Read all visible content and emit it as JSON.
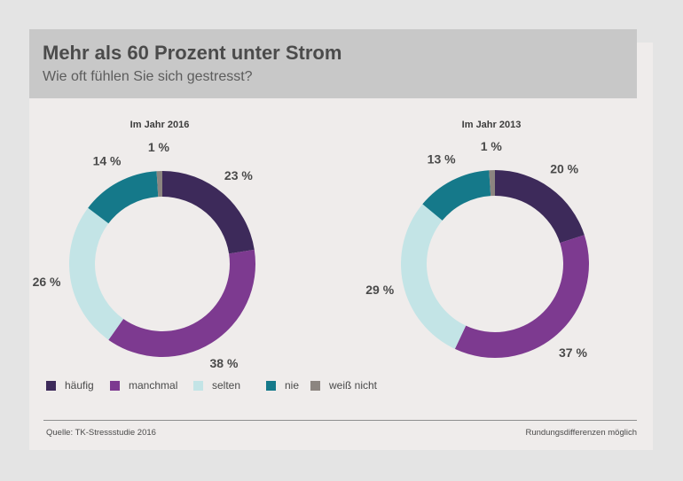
{
  "header": {
    "title": "Mehr als 60 Prozent unter Strom",
    "subtitle": "Wie oft fühlen Sie sich gestresst?"
  },
  "footer": {
    "source": "Quelle: TK-Stressstudie 2016",
    "note": "Rundungsdifferenzen möglich"
  },
  "colors": {
    "häufig": "#3d2a5a",
    "manchmal": "#7d3a90",
    "selten": "#c3e4e6",
    "nie": "#15798a",
    "weiß nicht": "#8c8580"
  },
  "chart_data": [
    {
      "type": "pie",
      "title": "Im Jahr 2016",
      "categories": [
        "häufig",
        "manchmal",
        "selten",
        "nie",
        "weiß nicht"
      ],
      "values": [
        23,
        38,
        26,
        14,
        1
      ],
      "labels": [
        "23 %",
        "38 %",
        "26 %",
        "14 %",
        "1 %"
      ]
    },
    {
      "type": "pie",
      "title": "Im Jahr 2013",
      "categories": [
        "häufig",
        "manchmal",
        "selten",
        "nie",
        "weiß nicht"
      ],
      "values": [
        20,
        37,
        29,
        13,
        1
      ],
      "labels": [
        "20 %",
        "37 %",
        "29 %",
        "13 %",
        "1 %"
      ]
    }
  ],
  "legend": [
    "häufig",
    "manchmal",
    "selten",
    "nie",
    "weiß nicht"
  ]
}
